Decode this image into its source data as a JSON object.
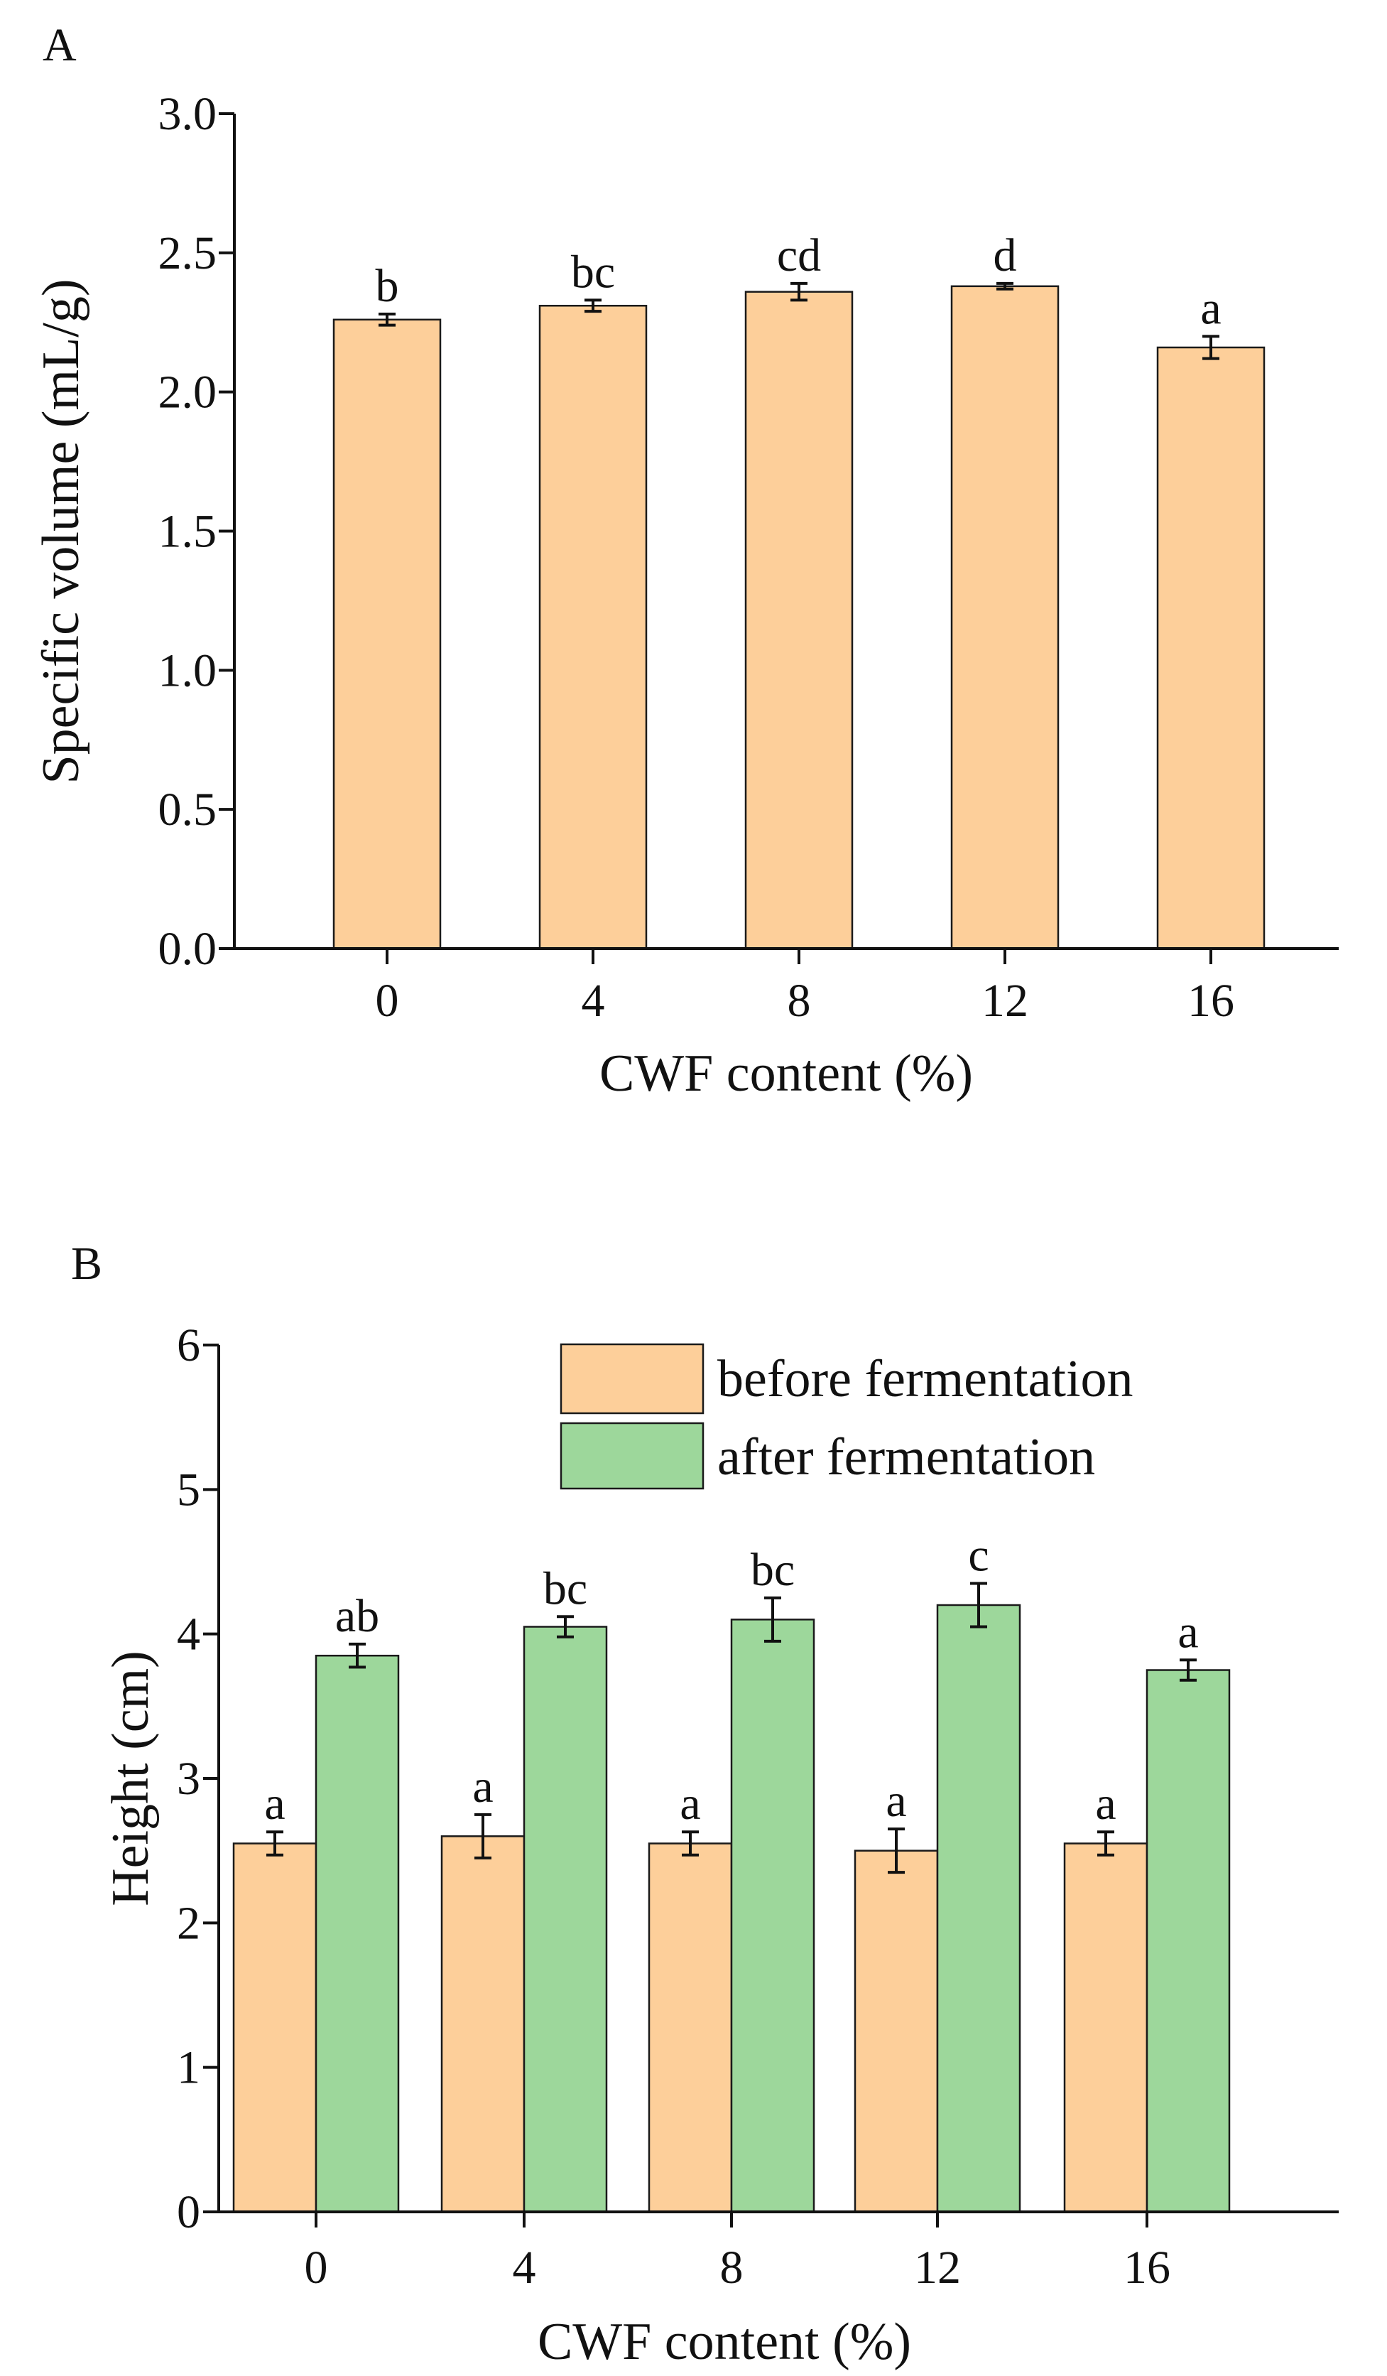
{
  "chart_data": [
    {
      "panel": "A",
      "type": "bar",
      "xlabel": "CWF content (%)",
      "ylabel": "Specific volume (mL/g)",
      "ylim": [
        0,
        3.0
      ],
      "yticks": [
        0.0,
        0.5,
        1.0,
        1.5,
        2.0,
        2.5,
        3.0
      ],
      "ytick_labels": [
        "0.0",
        "0.5",
        "1.0",
        "1.5",
        "2.0",
        "2.5",
        "3.0"
      ],
      "categories": [
        "0",
        "4",
        "8",
        "12",
        "16"
      ],
      "series": [
        {
          "name": "Specific volume",
          "color": "#FDCF9A",
          "values": [
            2.26,
            2.31,
            2.36,
            2.38,
            2.16
          ],
          "errors": [
            0.02,
            0.02,
            0.03,
            0.01,
            0.04
          ],
          "labels": [
            "b",
            "bc",
            "cd",
            "d",
            "a"
          ]
        }
      ]
    },
    {
      "panel": "B",
      "type": "bar",
      "xlabel": "CWF content (%)",
      "ylabel": "Height (cm)",
      "ylim": [
        0,
        6
      ],
      "yticks": [
        0,
        1,
        2,
        3,
        4,
        5,
        6
      ],
      "ytick_labels": [
        "0",
        "1",
        "2",
        "3",
        "4",
        "5",
        "6"
      ],
      "categories": [
        "0",
        "4",
        "8",
        "12",
        "16"
      ],
      "legend_position": "top-right",
      "series": [
        {
          "name": "before fermentation",
          "color": "#FDCF9A",
          "values": [
            2.55,
            2.6,
            2.55,
            2.5,
            2.55
          ],
          "errors": [
            0.08,
            0.15,
            0.08,
            0.15,
            0.08
          ],
          "labels": [
            "a",
            "a",
            "a",
            "a",
            "a"
          ]
        },
        {
          "name": "after fermentation",
          "color": "#9DD79B",
          "values": [
            3.85,
            4.05,
            4.1,
            4.2,
            3.75
          ],
          "errors": [
            0.08,
            0.07,
            0.15,
            0.15,
            0.07
          ],
          "labels": [
            "ab",
            "bc",
            "bc",
            "c",
            "a"
          ]
        }
      ]
    }
  ]
}
